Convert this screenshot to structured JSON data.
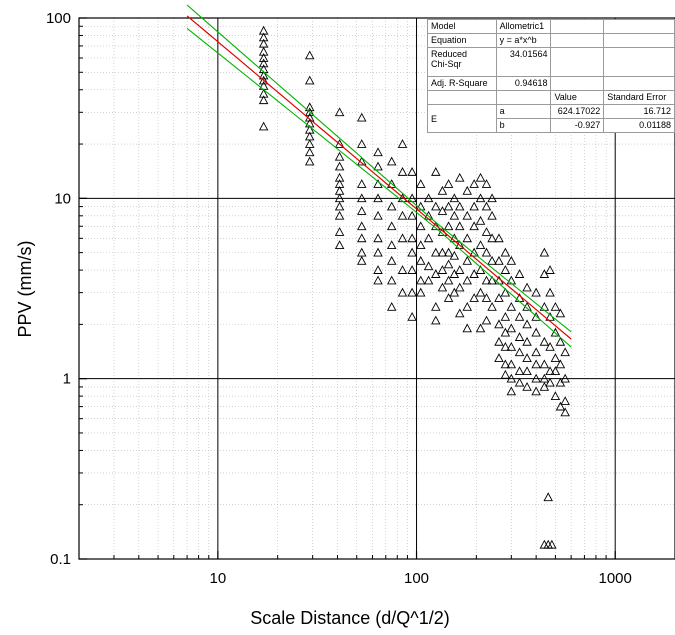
{
  "chart_data": {
    "type": "scatter",
    "title": "",
    "xlabel": "Scale Distance (d/Q^1/2)",
    "ylabel": "PPV (mm/s)",
    "xscale": "log",
    "yscale": "log",
    "xlim": [
      2,
      2000
    ],
    "ylim": [
      0.1,
      100
    ],
    "x_ticks": [
      10,
      100,
      1000
    ],
    "x_tick_labels": [
      "10",
      "100",
      "1000"
    ],
    "y_ticks": [
      0.1,
      1,
      10,
      100
    ],
    "y_tick_labels": [
      "0.1",
      "1",
      "10",
      "100"
    ],
    "grid": "major solid, minor dotted",
    "marker": "open triangle",
    "colors": {
      "marker": "#000000",
      "fit": "#e00000",
      "confidence": "#00b400"
    },
    "fit_line": {
      "model": "Allometric1",
      "a": 624.17022,
      "b": -0.927,
      "x_range": [
        7,
        600
      ]
    },
    "series": [
      {
        "values": [
          [
            17,
            85
          ],
          [
            17,
            78
          ],
          [
            17,
            72
          ],
          [
            17,
            65
          ],
          [
            17,
            60
          ],
          [
            17,
            56
          ],
          [
            17,
            52
          ],
          [
            17,
            48
          ],
          [
            17,
            45
          ],
          [
            17,
            42
          ],
          [
            17,
            38
          ],
          [
            17,
            35
          ],
          [
            17,
            25
          ],
          [
            29,
            62
          ],
          [
            29,
            45
          ],
          [
            29,
            32
          ],
          [
            29,
            30
          ],
          [
            29,
            28
          ],
          [
            29,
            26
          ],
          [
            29,
            24
          ],
          [
            29,
            22
          ],
          [
            29,
            20
          ],
          [
            29,
            18
          ],
          [
            29,
            16
          ],
          [
            41,
            30
          ],
          [
            41,
            20
          ],
          [
            41,
            17
          ],
          [
            41,
            15
          ],
          [
            41,
            13
          ],
          [
            41,
            12
          ],
          [
            41,
            11
          ],
          [
            41,
            10
          ],
          [
            41,
            9
          ],
          [
            41,
            8
          ],
          [
            41,
            6.5
          ],
          [
            41,
            5.5
          ],
          [
            53,
            28
          ],
          [
            53,
            20
          ],
          [
            53,
            16
          ],
          [
            53,
            12
          ],
          [
            53,
            10
          ],
          [
            53,
            8.5
          ],
          [
            53,
            7
          ],
          [
            53,
            6
          ],
          [
            53,
            5
          ],
          [
            53,
            4.5
          ],
          [
            64,
            18
          ],
          [
            64,
            15
          ],
          [
            64,
            12
          ],
          [
            64,
            10
          ],
          [
            64,
            8
          ],
          [
            64,
            6
          ],
          [
            64,
            5
          ],
          [
            64,
            4
          ],
          [
            64,
            3.5
          ],
          [
            75,
            16
          ],
          [
            75,
            12
          ],
          [
            75,
            9
          ],
          [
            75,
            7
          ],
          [
            75,
            5.5
          ],
          [
            75,
            4.5
          ],
          [
            75,
            3.5
          ],
          [
            75,
            2.5
          ],
          [
            85,
            20
          ],
          [
            85,
            14
          ],
          [
            85,
            10
          ],
          [
            85,
            8
          ],
          [
            85,
            6
          ],
          [
            85,
            4
          ],
          [
            85,
            3
          ],
          [
            95,
            14
          ],
          [
            95,
            10
          ],
          [
            95,
            8
          ],
          [
            95,
            6
          ],
          [
            95,
            5
          ],
          [
            95,
            4
          ],
          [
            95,
            3
          ],
          [
            95,
            2.2
          ],
          [
            105,
            12
          ],
          [
            105,
            9
          ],
          [
            105,
            7
          ],
          [
            105,
            5.5
          ],
          [
            105,
            4.5
          ],
          [
            105,
            3.5
          ],
          [
            105,
            3
          ],
          [
            115,
            10
          ],
          [
            115,
            8
          ],
          [
            115,
            6
          ],
          [
            115,
            4.2
          ],
          [
            115,
            3.5
          ],
          [
            125,
            14
          ],
          [
            125,
            9
          ],
          [
            125,
            7
          ],
          [
            125,
            5
          ],
          [
            125,
            3.8
          ],
          [
            125,
            2.5
          ],
          [
            125,
            2.1
          ],
          [
            135,
            11
          ],
          [
            135,
            8.5
          ],
          [
            135,
            6.5
          ],
          [
            135,
            5
          ],
          [
            135,
            4
          ],
          [
            135,
            3.2
          ],
          [
            145,
            12
          ],
          [
            145,
            9
          ],
          [
            145,
            7
          ],
          [
            145,
            5
          ],
          [
            145,
            4.3
          ],
          [
            145,
            3.5
          ],
          [
            145,
            2.8
          ],
          [
            155,
            10
          ],
          [
            155,
            8
          ],
          [
            155,
            6
          ],
          [
            155,
            4.8
          ],
          [
            155,
            3.8
          ],
          [
            155,
            3
          ],
          [
            165,
            13
          ],
          [
            165,
            9
          ],
          [
            165,
            7
          ],
          [
            165,
            5.5
          ],
          [
            165,
            4
          ],
          [
            165,
            3.2
          ],
          [
            165,
            2.3
          ],
          [
            180,
            11
          ],
          [
            180,
            8
          ],
          [
            180,
            6
          ],
          [
            180,
            4.5
          ],
          [
            180,
            3.5
          ],
          [
            180,
            2.5
          ],
          [
            180,
            1.9
          ],
          [
            195,
            12
          ],
          [
            195,
            9
          ],
          [
            195,
            7
          ],
          [
            195,
            5
          ],
          [
            195,
            3.8
          ],
          [
            195,
            2.8
          ],
          [
            210,
            13
          ],
          [
            210,
            10
          ],
          [
            210,
            7.5
          ],
          [
            210,
            5.5
          ],
          [
            210,
            4
          ],
          [
            210,
            3
          ],
          [
            210,
            1.9
          ],
          [
            225,
            12
          ],
          [
            225,
            9
          ],
          [
            225,
            6.5
          ],
          [
            225,
            5
          ],
          [
            225,
            3.5
          ],
          [
            225,
            2.8
          ],
          [
            225,
            2.1
          ],
          [
            240,
            10
          ],
          [
            240,
            8
          ],
          [
            240,
            6
          ],
          [
            240,
            4.5
          ],
          [
            240,
            3.5
          ],
          [
            240,
            2.5
          ],
          [
            260,
            6
          ],
          [
            260,
            4.5
          ],
          [
            260,
            3.5
          ],
          [
            260,
            2.8
          ],
          [
            260,
            2
          ],
          [
            260,
            1.6
          ],
          [
            260,
            1.3
          ],
          [
            280,
            5
          ],
          [
            280,
            4
          ],
          [
            280,
            3
          ],
          [
            280,
            2.2
          ],
          [
            280,
            1.8
          ],
          [
            280,
            1.5
          ],
          [
            280,
            1.2
          ],
          [
            280,
            1.05
          ],
          [
            300,
            4.5
          ],
          [
            300,
            3.5
          ],
          [
            300,
            2.5
          ],
          [
            300,
            1.9
          ],
          [
            300,
            1.5
          ],
          [
            300,
            1.2
          ],
          [
            300,
            1
          ],
          [
            300,
            0.85
          ],
          [
            330,
            3.8
          ],
          [
            330,
            2.8
          ],
          [
            330,
            2.2
          ],
          [
            330,
            1.7
          ],
          [
            330,
            1.4
          ],
          [
            330,
            1.1
          ],
          [
            330,
            0.95
          ],
          [
            360,
            3.2
          ],
          [
            360,
            2.5
          ],
          [
            360,
            2
          ],
          [
            360,
            1.6
          ],
          [
            360,
            1.3
          ],
          [
            360,
            1.1
          ],
          [
            360,
            0.9
          ],
          [
            400,
            3
          ],
          [
            400,
            2.2
          ],
          [
            400,
            1.8
          ],
          [
            400,
            1.4
          ],
          [
            400,
            1.2
          ],
          [
            400,
            1
          ],
          [
            400,
            0.85
          ],
          [
            440,
            5
          ],
          [
            440,
            3.8
          ],
          [
            440,
            2.5
          ],
          [
            440,
            1.6
          ],
          [
            440,
            1.2
          ],
          [
            440,
            1
          ],
          [
            440,
            0.9
          ],
          [
            470,
            4
          ],
          [
            470,
            3
          ],
          [
            470,
            2.2
          ],
          [
            470,
            1.5
          ],
          [
            470,
            1.1
          ],
          [
            470,
            0.95
          ],
          [
            500,
            2.5
          ],
          [
            500,
            1.8
          ],
          [
            500,
            1.3
          ],
          [
            500,
            1.1
          ],
          [
            500,
            0.8
          ],
          [
            530,
            2.3
          ],
          [
            530,
            1.6
          ],
          [
            530,
            1.2
          ],
          [
            530,
            0.95
          ],
          [
            530,
            0.7
          ],
          [
            560,
            1.4
          ],
          [
            560,
            1
          ],
          [
            560,
            0.75
          ],
          [
            560,
            0.65
          ],
          [
            460,
            0.22
          ],
          [
            440,
            0.12
          ],
          [
            460,
            0.12
          ],
          [
            480,
            0.12
          ]
        ]
      }
    ]
  },
  "fit_table": {
    "model_label": "Model",
    "model_value": "Allometric1",
    "equation_label": "Equation",
    "equation_value": "y = a*x^b",
    "chisqr_label_1": "Reduced",
    "chisqr_label_2": "Chi-Sqr",
    "chisqr_value": "34.01564",
    "adjr_label": "Adj. R-Square",
    "adjr_value": "0.94618",
    "header_value": "Value",
    "header_error": "Standard Error",
    "row_label": "E",
    "a_name": "a",
    "a_value": "624.17022",
    "a_error": "16.712",
    "b_name": "b",
    "b_value": "-0.927",
    "b_error": "0.01188"
  }
}
